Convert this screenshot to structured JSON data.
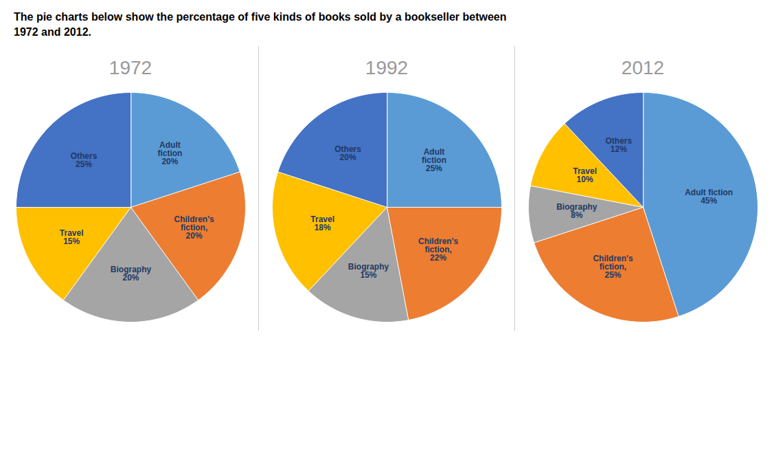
{
  "title": "The pie charts below show the percentage of five kinds of books sold by a bookseller between\n1972 and 2012.",
  "chart_data": [
    {
      "type": "pie",
      "title": "1972",
      "categories": [
        "Adult\nfiction\n20%",
        "Children's\nfiction,\n20%",
        "Biography\n20%",
        "Travel\n15%",
        "Others\n25%"
      ],
      "values": [
        20,
        20,
        20,
        15,
        25
      ],
      "colors": [
        "#5B9BD5",
        "#ED7D31",
        "#A5A5A5",
        "#FFC000",
        "#4472C4"
      ]
    },
    {
      "type": "pie",
      "title": "1992",
      "categories": [
        "Adult\nfiction\n25%",
        "Children's\nfiction,\n22%",
        "Biography\n15%",
        "Travel\n18%",
        "Others\n20%"
      ],
      "values": [
        25,
        22,
        15,
        18,
        20
      ],
      "colors": [
        "#5B9BD5",
        "#ED7D31",
        "#A5A5A5",
        "#FFC000",
        "#4472C4"
      ]
    },
    {
      "type": "pie",
      "title": "2012",
      "categories": [
        "Adult fiction\n45%",
        "Children's\nfiction,\n25%",
        "Biography\n8%",
        "Travel\n10%",
        "Others\n12%"
      ],
      "values": [
        45,
        25,
        8,
        10,
        12
      ],
      "colors": [
        "#5B9BD5",
        "#ED7D31",
        "#A5A5A5",
        "#FFC000",
        "#4472C4"
      ]
    }
  ]
}
